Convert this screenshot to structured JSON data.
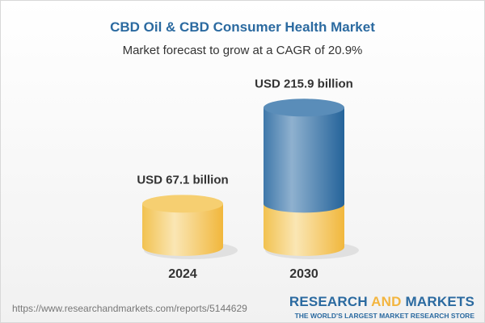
{
  "title": "CBD Oil & CBD Consumer Health Market",
  "subtitle": "Market forecast to grow at a CAGR of 20.9%",
  "chart_data": {
    "type": "bar",
    "style": "3d-cylinder",
    "categories": [
      "2024",
      "2030"
    ],
    "values": [
      67.1,
      215.9
    ],
    "data_labels": [
      "USD 67.1 billion",
      "USD 215.9 billion"
    ],
    "unit": "USD billion",
    "colors": {
      "base": "#f3c55a",
      "growth": "#3f78aa"
    }
  },
  "footer": {
    "url": "https://www.researchandmarkets.com/reports/5144629",
    "logo_word1": "RESEARCH",
    "logo_word2": "AND",
    "logo_word3": "MARKETS",
    "logo_tagline": "THE WORLD'S LARGEST MARKET RESEARCH STORE"
  }
}
